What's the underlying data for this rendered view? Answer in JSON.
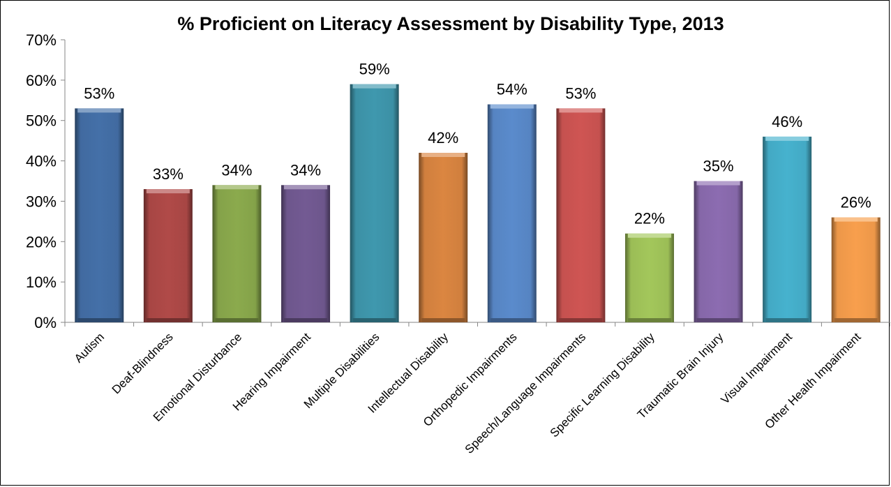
{
  "chart_data": {
    "type": "bar",
    "title": "% Proficient on Literacy Assessment by Disability Type, 2013",
    "xlabel": "",
    "ylabel": "",
    "ylim": [
      0,
      70
    ],
    "yticks": [
      "0%",
      "10%",
      "20%",
      "30%",
      "40%",
      "50%",
      "60%",
      "70%"
    ],
    "grid": false,
    "legend": "none",
    "categories": [
      "Autism",
      "Deaf-Blindness",
      "Emotional Disturbance",
      "Hearing Impairment",
      "Multiple Disabilities",
      "Intellectual Disability",
      "Orthopedic Impairments",
      "Speech/Language Impairments",
      "Specific Learning Disability",
      "Traumatic Brain Injury",
      "Visual Impairment",
      "Other Health Impairment"
    ],
    "values": [
      53,
      33,
      34,
      34,
      59,
      42,
      54,
      53,
      22,
      35,
      46,
      26
    ],
    "data_labels": [
      "53%",
      "33%",
      "34%",
      "34%",
      "59%",
      "42%",
      "54%",
      "53%",
      "22%",
      "35%",
      "46%",
      "26%"
    ],
    "colors": [
      "#4470A8",
      "#B04A48",
      "#8BAA4D",
      "#735A93",
      "#3F98AE",
      "#DB8641",
      "#5A8BCC",
      "#CF5553",
      "#A3C75B",
      "#8C6CB1",
      "#46B2CE",
      "#F89F4D"
    ]
  }
}
